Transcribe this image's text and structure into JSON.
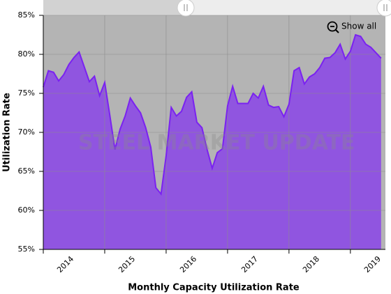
{
  "chart_data": {
    "type": "area",
    "x_label": "Monthly Capacity Utilization Rate",
    "y_label": "Utilization Rate",
    "watermark": "STEEL MARKET UPDATE",
    "button": "Show all",
    "grid": true,
    "color": "#9055e0",
    "line_color": "#7a22f0",
    "background": "#b4b4b4",
    "xlim": [
      2014,
      2019.57
    ],
    "xticks": [
      2014,
      2015,
      2016,
      2017,
      2018,
      2019
    ],
    "ylim": [
      55,
      85
    ],
    "yticks": [
      {
        "value": 55,
        "label": "55%"
      },
      {
        "value": 60,
        "label": "60%"
      },
      {
        "value": 65,
        "label": "65%"
      },
      {
        "value": 70,
        "label": "70%"
      },
      {
        "value": 75,
        "label": "75%"
      },
      {
        "value": 80,
        "label": "80%"
      },
      {
        "value": 85,
        "label": "85%"
      }
    ],
    "x": [
      2014,
      2014.083,
      2014.167,
      2014.25,
      2014.333,
      2014.417,
      2014.5,
      2014.583,
      2014.667,
      2014.75,
      2014.833,
      2014.917,
      2015,
      2015.083,
      2015.167,
      2015.25,
      2015.333,
      2015.417,
      2015.5,
      2015.583,
      2015.667,
      2015.75,
      2015.833,
      2015.917,
      2016,
      2016.083,
      2016.167,
      2016.25,
      2016.333,
      2016.417,
      2016.5,
      2016.583,
      2016.667,
      2016.75,
      2016.833,
      2016.917,
      2017,
      2017.083,
      2017.167,
      2017.25,
      2017.333,
      2017.417,
      2017.5,
      2017.583,
      2017.667,
      2017.75,
      2017.833,
      2017.917,
      2018,
      2018.083,
      2018.167,
      2018.25,
      2018.333,
      2018.417,
      2018.5,
      2018.583,
      2018.667,
      2018.75,
      2018.833,
      2018.917,
      2019,
      2019.083,
      2019.167,
      2019.25,
      2019.333,
      2019.417,
      2019.5
    ],
    "values": [
      75.8,
      77.9,
      77.7,
      76.6,
      77.4,
      78.7,
      79.6,
      80.3,
      78.4,
      76.5,
      77.2,
      74.7,
      76.4,
      72.2,
      67.8,
      70.4,
      72.1,
      74.4,
      73.4,
      72.5,
      70.6,
      68.1,
      62.9,
      62.1,
      67.0,
      73.2,
      72.1,
      72.7,
      74.5,
      75.2,
      71.3,
      70.6,
      67.8,
      65.4,
      67.4,
      67.9,
      73.4,
      75.9,
      73.7,
      73.7,
      73.7,
      75.0,
      74.4,
      75.9,
      73.5,
      73.2,
      73.3,
      72.0,
      73.6,
      77.9,
      78.3,
      76.2,
      77.1,
      77.5,
      78.3,
      79.5,
      79.6,
      80.2,
      81.3,
      79.4,
      80.4,
      82.5,
      82.3,
      81.3,
      80.9,
      80.2,
      79.5
    ]
  }
}
